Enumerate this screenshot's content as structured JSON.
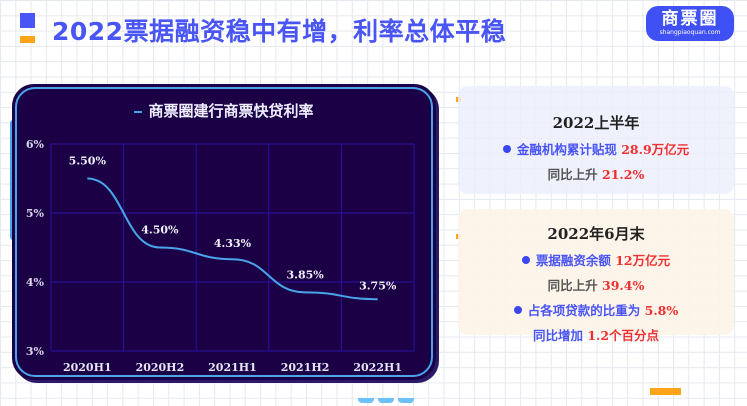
{
  "header": {
    "title": "2022票据融资稳中有增，利率总体平稳",
    "logo_text": "商票圈",
    "logo_url": "shangpiaoquan.com"
  },
  "chart_card": {
    "title": "商票圈建行商票快贷利率"
  },
  "chart_data": {
    "type": "line",
    "title": "商票圈建行商票快贷利率",
    "categories": [
      "2020H1",
      "2020H2",
      "2021H1",
      "2021H2",
      "2022H1"
    ],
    "values": [
      5.5,
      4.5,
      4.33,
      3.85,
      3.75
    ],
    "value_labels": [
      "5.50%",
      "4.50%",
      "4.33%",
      "3.85%",
      "3.75%"
    ],
    "y_ticks": [
      "3%",
      "4%",
      "5%",
      "6%"
    ],
    "xlabel": "",
    "ylabel": "",
    "ylim": [
      3,
      6
    ],
    "grid": true,
    "smooth": true,
    "line_color": "#49a4ea"
  },
  "panels": {
    "h1_2022": {
      "heading": "2022上半年",
      "line1_label": "金融机构累计贴现",
      "line1_value": "28.9万亿元",
      "line2_label": "同比上升",
      "line2_value": "21.2%"
    },
    "june_2022": {
      "heading": "2022年6月末",
      "line1_label": "票据融资余额",
      "line1_value": "12万亿元",
      "line2_label": "同比上升",
      "line2_value": "39.4%",
      "line3_label": "占各项贷款的比重为",
      "line3_value": "5.8%",
      "line4_label": "同比增加",
      "line4_value": "1.2个百分点"
    }
  },
  "colors": {
    "accent_blue": "#4a55f5",
    "accent_orange": "#ffa41b",
    "chart_bg": "#1b0046",
    "highlight_red": "#f02f2f"
  }
}
